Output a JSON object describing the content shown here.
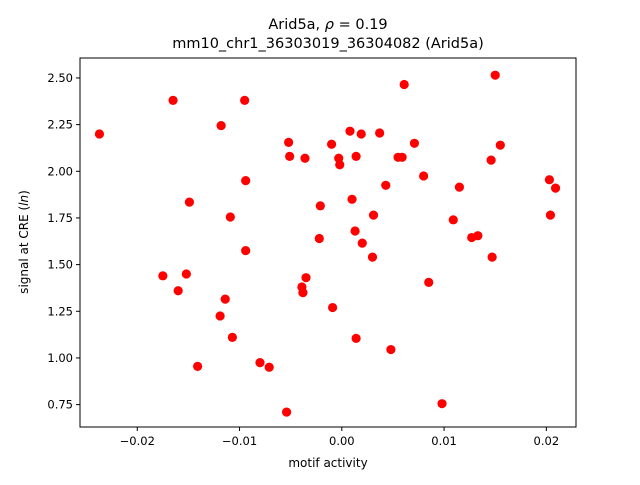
{
  "chart_data": {
    "type": "scatter",
    "title_line1_prefix": "Arid5a, ",
    "title_line1_rho": "ρ",
    "title_line1_suffix": " = 0.19",
    "title_line2": "mm10_chr1_36303019_36304082 (Arid5a)",
    "xlabel": "motif activity",
    "ylabel_prefix": "signal at CRE (",
    "ylabel_italic": "ln",
    "ylabel_suffix": ")",
    "xlim": [
      -0.0256,
      0.0229
    ],
    "ylim": [
      0.63,
      2.607
    ],
    "x_ticks": [
      -0.02,
      -0.01,
      0.0,
      0.01,
      0.02
    ],
    "x_tick_labels": [
      "−0.02",
      "−0.01",
      "0.00",
      "0.01",
      "0.02"
    ],
    "y_ticks": [
      0.75,
      1.0,
      1.25,
      1.5,
      1.75,
      2.0,
      2.25,
      2.5
    ],
    "y_tick_labels": [
      "0.75",
      "1.00",
      "1.25",
      "1.50",
      "1.75",
      "2.00",
      "2.25",
      "2.50"
    ],
    "grid": false,
    "marker_color": "#ff0000",
    "points": [
      {
        "x": -0.0237,
        "y": 2.2
      },
      {
        "x": -0.0165,
        "y": 2.38
      },
      {
        "x": -0.0095,
        "y": 2.38
      },
      {
        "x": -0.0118,
        "y": 2.245
      },
      {
        "x": -0.0052,
        "y": 2.155
      },
      {
        "x": -0.0051,
        "y": 2.08
      },
      {
        "x": -0.0036,
        "y": 2.07
      },
      {
        "x": -0.001,
        "y": 2.145
      },
      {
        "x": 0.0008,
        "y": 2.215
      },
      {
        "x": 0.0019,
        "y": 2.2
      },
      {
        "x": 0.0037,
        "y": 2.205
      },
      {
        "x": -0.0003,
        "y": 2.07
      },
      {
        "x": -0.0002,
        "y": 2.035
      },
      {
        "x": 0.0014,
        "y": 2.08
      },
      {
        "x": 0.0061,
        "y": 2.465
      },
      {
        "x": 0.015,
        "y": 2.515
      },
      {
        "x": 0.0071,
        "y": 2.15
      },
      {
        "x": 0.0155,
        "y": 2.14
      },
      {
        "x": 0.0055,
        "y": 2.075
      },
      {
        "x": 0.0059,
        "y": 2.075
      },
      {
        "x": 0.0146,
        "y": 2.06
      },
      {
        "x": 0.008,
        "y": 1.975
      },
      {
        "x": 0.0115,
        "y": 1.915
      },
      {
        "x": 0.0203,
        "y": 1.955
      },
      {
        "x": 0.0209,
        "y": 1.91
      },
      {
        "x": 0.0043,
        "y": 1.925
      },
      {
        "x": -0.0094,
        "y": 1.95
      },
      {
        "x": -0.0149,
        "y": 1.835
      },
      {
        "x": -0.0109,
        "y": 1.755
      },
      {
        "x": -0.0021,
        "y": 1.815
      },
      {
        "x": 0.001,
        "y": 1.85
      },
      {
        "x": 0.0031,
        "y": 1.765
      },
      {
        "x": 0.0109,
        "y": 1.74
      },
      {
        "x": 0.0204,
        "y": 1.765
      },
      {
        "x": 0.0013,
        "y": 1.68
      },
      {
        "x": -0.0022,
        "y": 1.64
      },
      {
        "x": 0.002,
        "y": 1.615
      },
      {
        "x": 0.0127,
        "y": 1.645
      },
      {
        "x": 0.0133,
        "y": 1.655
      },
      {
        "x": -0.0094,
        "y": 1.575
      },
      {
        "x": 0.003,
        "y": 1.54
      },
      {
        "x": 0.0147,
        "y": 1.54
      },
      {
        "x": -0.0175,
        "y": 1.44
      },
      {
        "x": -0.0152,
        "y": 1.45
      },
      {
        "x": -0.0035,
        "y": 1.43
      },
      {
        "x": -0.016,
        "y": 1.36
      },
      {
        "x": -0.0039,
        "y": 1.38
      },
      {
        "x": -0.0038,
        "y": 1.35
      },
      {
        "x": 0.0085,
        "y": 1.405
      },
      {
        "x": -0.0114,
        "y": 1.315
      },
      {
        "x": -0.0119,
        "y": 1.225
      },
      {
        "x": -0.0009,
        "y": 1.27
      },
      {
        "x": -0.0107,
        "y": 1.11
      },
      {
        "x": 0.0014,
        "y": 1.105
      },
      {
        "x": 0.0048,
        "y": 1.045
      },
      {
        "x": -0.0141,
        "y": 0.955
      },
      {
        "x": -0.008,
        "y": 0.975
      },
      {
        "x": -0.0071,
        "y": 0.95
      },
      {
        "x": -0.0054,
        "y": 0.71
      },
      {
        "x": 0.0098,
        "y": 0.755
      }
    ]
  }
}
